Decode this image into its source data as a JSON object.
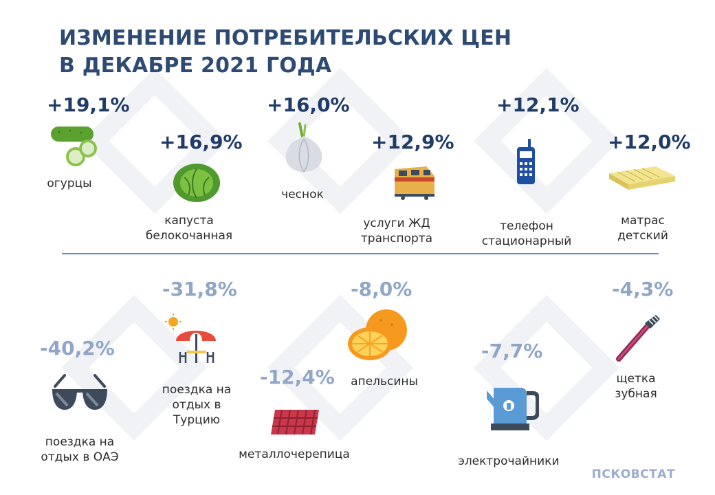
{
  "title": {
    "line1": "ИЗМЕНЕНИЕ ПОТРЕБИТЕЛЬСКИХ ЦЕН",
    "line2": "В ДЕКАБРЕ 2021 ГОДА"
  },
  "increases": [
    {
      "value": "+19,1%",
      "label_lines": [
        "огурцы"
      ],
      "icon": "cucumber-icon"
    },
    {
      "value": "+16,9%",
      "label_lines": [
        "капуста",
        "белокочанная"
      ],
      "icon": "cabbage-icon"
    },
    {
      "value": "+16,0%",
      "label_lines": [
        "чеснок"
      ],
      "icon": "garlic-icon"
    },
    {
      "value": "+12,9%",
      "label_lines": [
        "услуги ЖД",
        "транспорта"
      ],
      "icon": "train-icon"
    },
    {
      "value": "+12,1%",
      "label_lines": [
        "телефон",
        "стационарный"
      ],
      "icon": "phone-icon"
    },
    {
      "value": "+12,0%",
      "label_lines": [
        "матрас",
        "детский"
      ],
      "icon": "mattress-icon"
    }
  ],
  "decreases": [
    {
      "value": "-40,2%",
      "label_lines": [
        "поездка на",
        "отдых в ОАЭ"
      ],
      "icon": "sunglasses-icon"
    },
    {
      "value": "-31,8%",
      "label_lines": [
        "поездка на",
        "отдых в",
        "Турцию"
      ],
      "icon": "beach-umbrella-icon"
    },
    {
      "value": "-12,4%",
      "label_lines": [
        "металлочерепица"
      ],
      "icon": "roof-tile-icon"
    },
    {
      "value": "-8,0%",
      "label_lines": [
        "апельсины"
      ],
      "icon": "orange-icon"
    },
    {
      "value": "-7,7%",
      "label_lines": [
        "электрочайники"
      ],
      "icon": "kettle-icon"
    },
    {
      "value": "-4,3%",
      "label_lines": [
        "щетка",
        "зубная"
      ],
      "icon": "toothbrush-icon"
    }
  ],
  "brand": "ПСКОВСТАТ",
  "colors": {
    "title": "#2d4a72",
    "increase": "#1f3c68",
    "decrease": "#8fa6c6",
    "divider": "#6b8fbd",
    "brand": "#9aaccd"
  }
}
